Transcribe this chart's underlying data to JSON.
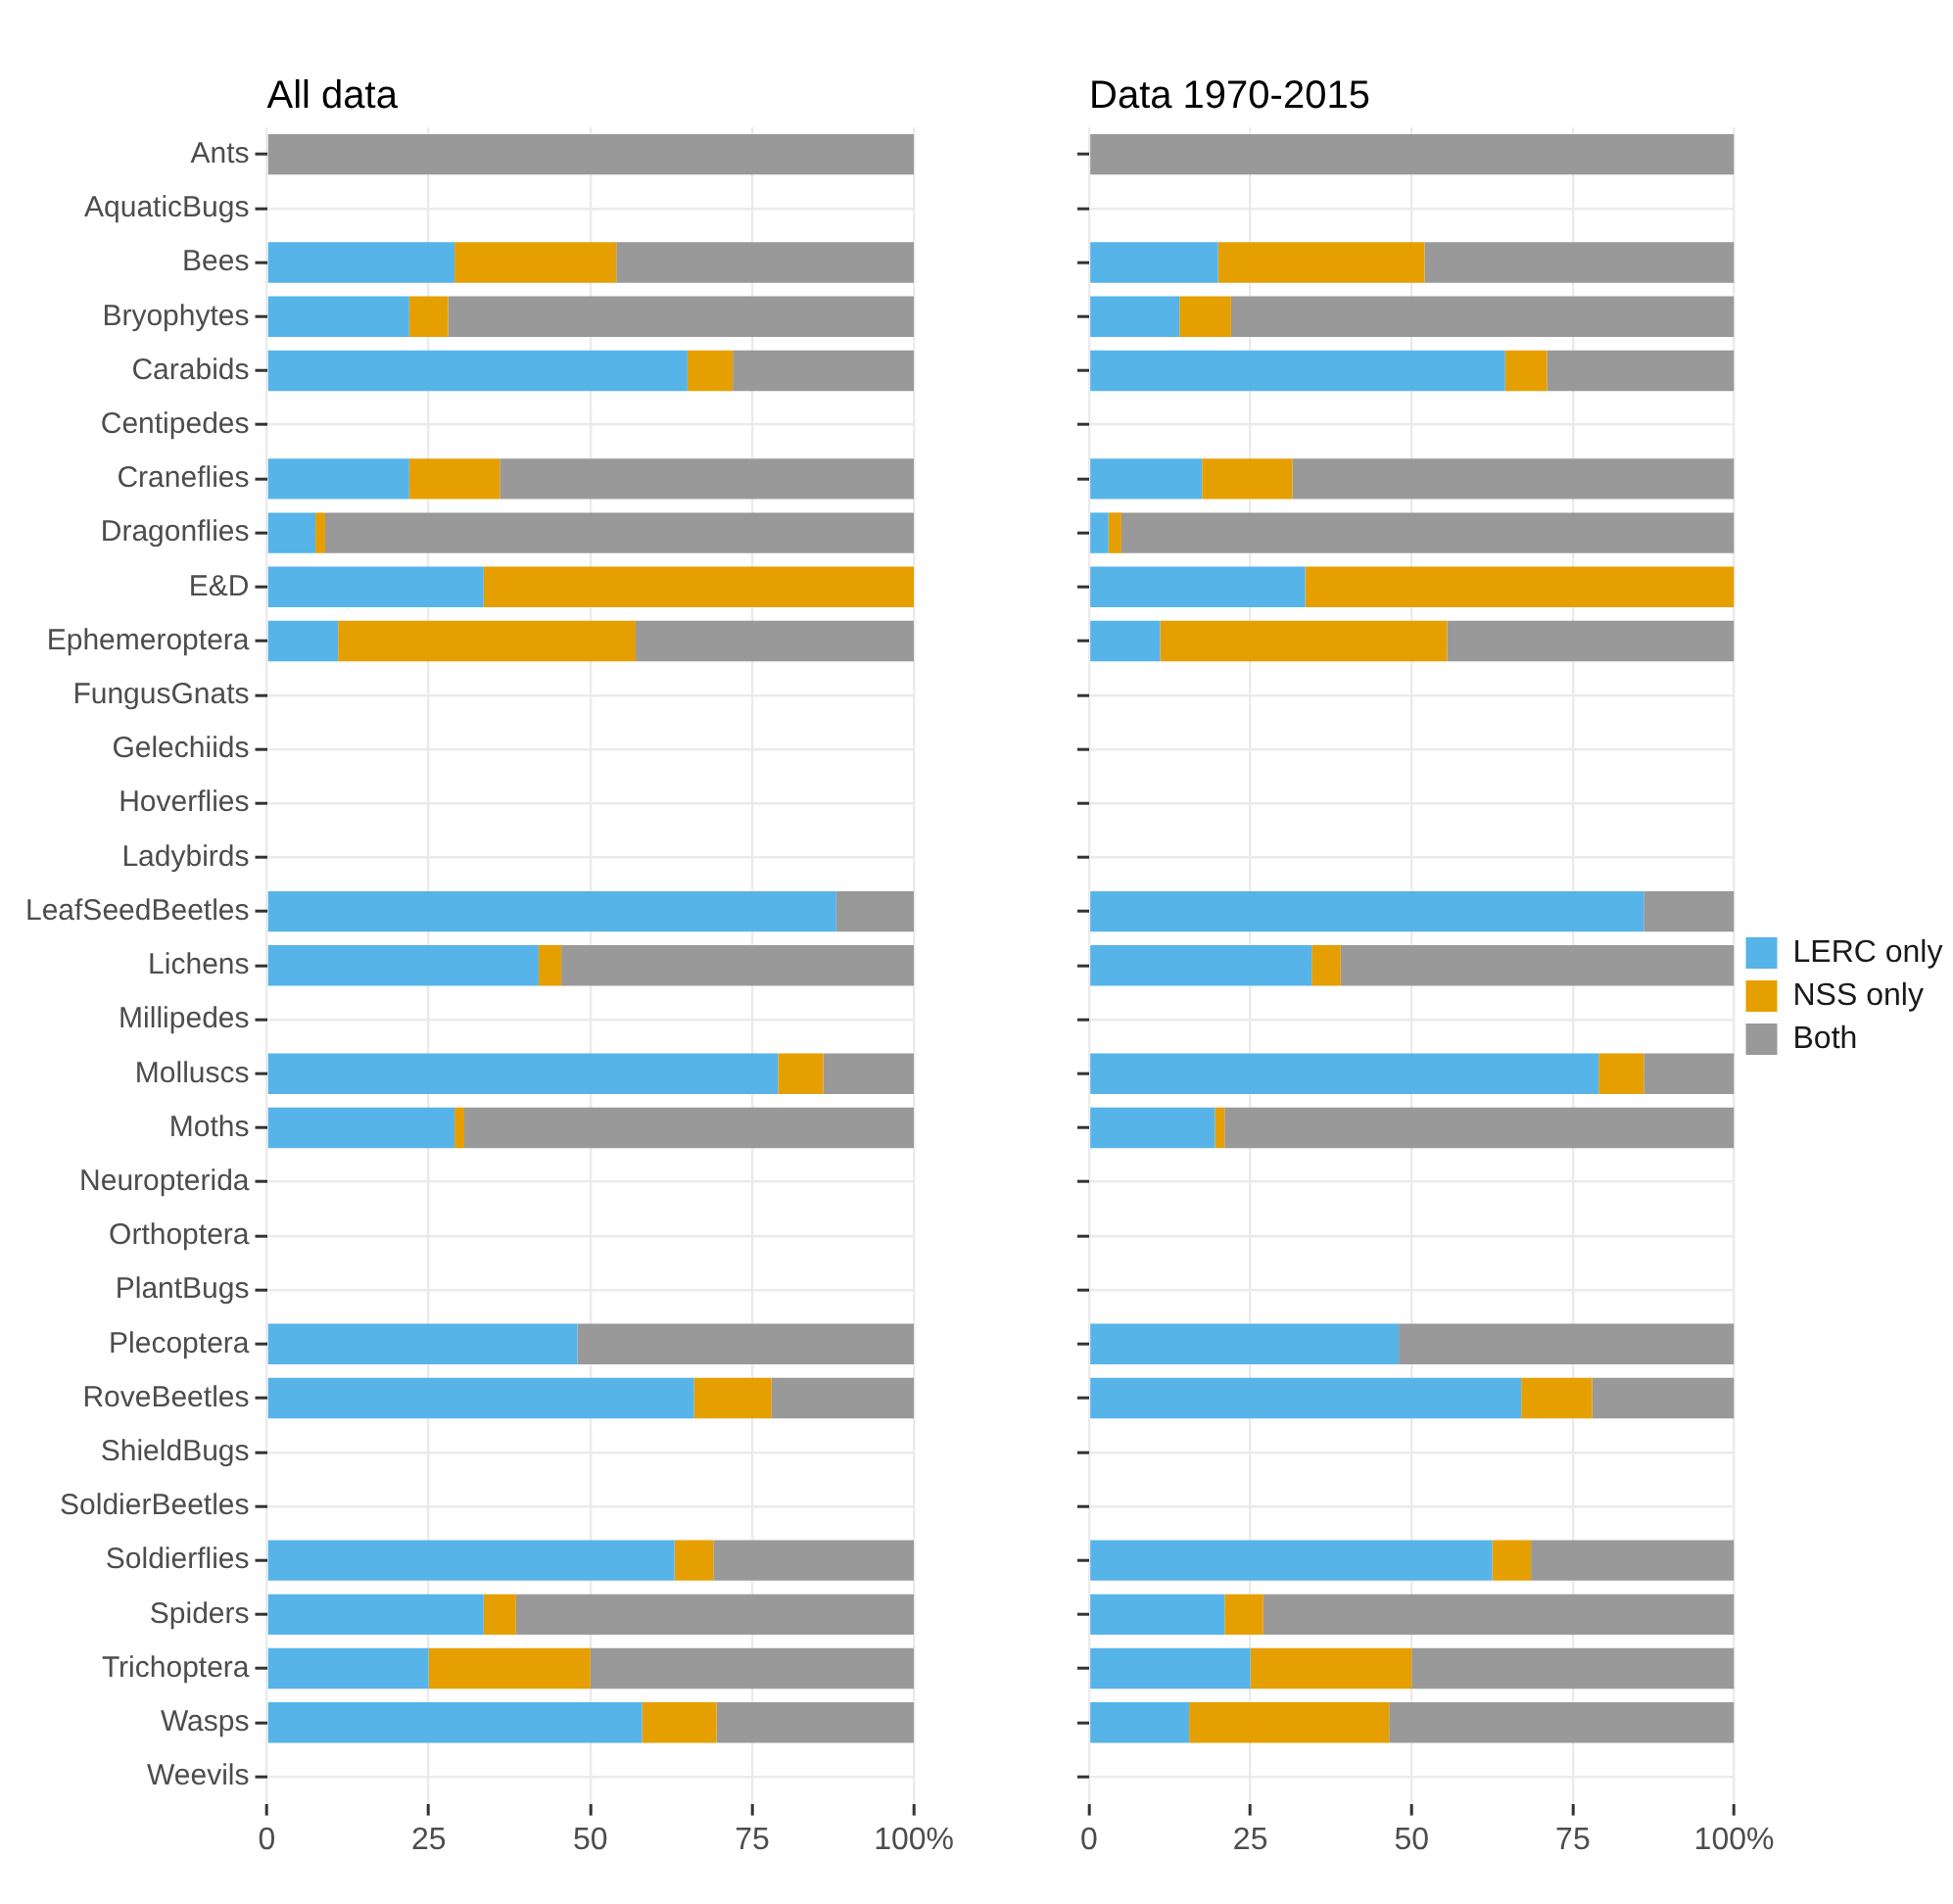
{
  "chart_data": [
    {
      "type": "bar",
      "title": "All data",
      "orientation": "horizontal",
      "stacked": true,
      "grid": true,
      "legend": false,
      "categories": [
        "Ants",
        "AquaticBugs",
        "Bees",
        "Bryophytes",
        "Carabids",
        "Centipedes",
        "Craneflies",
        "Dragonflies",
        "E&D",
        "Ephemeroptera",
        "FungusGnats",
        "Gelechiids",
        "Hoverflies",
        "Ladybirds",
        "LeafSeedBeetles",
        "Lichens",
        "Millipedes",
        "Molluscs",
        "Moths",
        "Neuropterida",
        "Orthoptera",
        "PlantBugs",
        "Plecoptera",
        "RoveBeetles",
        "ShieldBugs",
        "SoldierBeetles",
        "Soldierflies",
        "Spiders",
        "Trichoptera",
        "Wasps",
        "Weevils"
      ],
      "xlim": [
        0,
        100
      ],
      "xticks": [
        0,
        25,
        50,
        75,
        {
          "value": 100,
          "label": "100%"
        }
      ],
      "series": [
        {
          "color": "#56b4e9",
          "values": [
            0,
            null,
            29,
            22,
            65,
            null,
            22,
            7.5,
            33.5,
            11,
            null,
            null,
            null,
            null,
            88,
            42,
            null,
            79,
            29,
            null,
            null,
            null,
            48,
            66,
            null,
            null,
            63,
            33.5,
            25,
            58,
            null
          ]
        },
        {
          "color": "#e69f00",
          "values": [
            0,
            null,
            25,
            6,
            7,
            null,
            14,
            1.5,
            66.5,
            46,
            null,
            null,
            null,
            null,
            0,
            3.5,
            null,
            7,
            1.5,
            null,
            null,
            null,
            0,
            12,
            null,
            null,
            6,
            5,
            25,
            11.5,
            null
          ]
        },
        {
          "color": "#999999",
          "values": [
            100,
            null,
            46,
            72,
            28,
            null,
            64,
            91,
            0,
            43,
            null,
            null,
            null,
            null,
            12,
            54.5,
            null,
            14,
            69.5,
            null,
            null,
            null,
            52,
            22,
            null,
            null,
            31,
            61.5,
            50,
            30.5,
            null
          ]
        }
      ]
    },
    {
      "type": "bar",
      "title": "Data 1970-2015",
      "orientation": "horizontal",
      "stacked": true,
      "grid": true,
      "legend": "right",
      "tick_labels": "x",
      "categories": [
        null,
        null,
        null,
        null,
        null,
        null,
        null,
        null,
        null,
        null,
        null,
        null,
        null,
        null,
        null,
        null,
        null,
        null,
        null,
        null,
        null,
        null,
        null,
        null,
        null,
        null,
        null,
        null,
        null,
        null,
        null
      ],
      "xlim": [
        0,
        100
      ],
      "xticks": [
        0,
        25,
        50,
        75,
        {
          "value": 100,
          "label": "100%"
        }
      ],
      "series": [
        {
          "name": "LERC only",
          "color": "#56b4e9",
          "values": [
            0,
            null,
            20,
            14,
            64.5,
            null,
            17.5,
            3,
            33.5,
            11,
            null,
            null,
            null,
            null,
            86,
            34.5,
            null,
            79,
            19.5,
            null,
            null,
            null,
            48,
            67,
            null,
            null,
            62.5,
            21,
            25,
            15.5,
            null
          ]
        },
        {
          "name": "NSS only",
          "color": "#e69f00",
          "values": [
            0,
            null,
            32,
            8,
            6.5,
            null,
            14,
            2,
            66.5,
            44.5,
            null,
            null,
            null,
            null,
            0,
            4.5,
            null,
            7,
            1.5,
            null,
            null,
            null,
            0,
            11,
            null,
            null,
            6,
            6,
            25,
            31,
            null
          ]
        },
        {
          "name": "Both",
          "color": "#999999",
          "values": [
            100,
            null,
            48,
            78,
            29,
            null,
            68.5,
            95,
            0,
            44.5,
            null,
            null,
            null,
            null,
            14,
            61,
            null,
            14,
            79,
            null,
            null,
            null,
            52,
            22,
            null,
            null,
            31.5,
            73,
            50,
            53.5,
            null
          ]
        }
      ]
    }
  ]
}
